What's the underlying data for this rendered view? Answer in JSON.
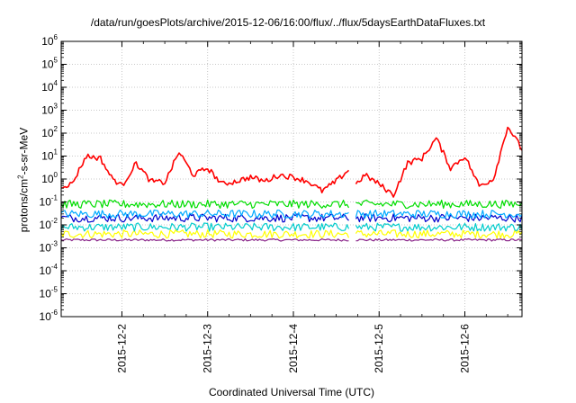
{
  "chart_data": {
    "type": "line",
    "title": "/data/run/goesPlots/archive/2015-12-06/16:00/flux/../flux/5daysEarthDataFluxes.txt",
    "xlabel": "Coordinated Universal Time (UTC)",
    "ylabel_parts": [
      "protons/cm",
      "2",
      "-s-sr-MeV"
    ],
    "y_scale": "log",
    "ylim": [
      1e-06,
      1000000.0
    ],
    "xlim": [
      "2015-12-01 07:00",
      "2015-12-06 16:00"
    ],
    "grid": true,
    "x_tick_labels": [
      "2015-12-2",
      "2015-12-3",
      "2015-12-4",
      "2015-12-5",
      "2015-12-6"
    ],
    "y_ticks": [
      {
        "base": "10",
        "exp": "-6"
      },
      {
        "base": "10",
        "exp": "-5"
      },
      {
        "base": "10",
        "exp": "-4"
      },
      {
        "base": "10",
        "exp": "-3"
      },
      {
        "base": "10",
        "exp": "-2"
      },
      {
        "base": "10",
        "exp": "-1"
      },
      {
        "base": "10",
        "exp": "0"
      },
      {
        "base": "10",
        "exp": "1"
      },
      {
        "base": "10",
        "exp": "2"
      },
      {
        "base": "10",
        "exp": "3"
      },
      {
        "base": "10",
        "exp": "4"
      },
      {
        "base": "10",
        "exp": "5"
      },
      {
        "base": "10",
        "exp": "6"
      }
    ],
    "data_gap": [
      "2015-12-04 16:00",
      "2015-12-04 17:00"
    ],
    "series": [
      {
        "color": "#ff0000",
        "x": [
          "2015-12-01 07:00",
          "2015-12-01 10:00",
          "2015-12-01 14:00",
          "2015-12-01 18:00",
          "2015-12-01 21:00",
          "2015-12-02 00:00",
          "2015-12-02 04:00",
          "2015-12-02 08:00",
          "2015-12-02 12:00",
          "2015-12-02 16:00",
          "2015-12-02 20:00",
          "2015-12-03 00:00",
          "2015-12-03 04:00",
          "2015-12-03 08:00",
          "2015-12-03 12:00",
          "2015-12-03 16:00",
          "2015-12-03 20:00",
          "2015-12-04 00:00",
          "2015-12-04 04:00",
          "2015-12-04 08:00",
          "2015-12-04 12:00",
          "2015-12-04 16:00",
          "2015-12-04 17:00",
          "2015-12-04 20:00",
          "2015-12-05 00:00",
          "2015-12-05 04:00",
          "2015-12-05 08:00",
          "2015-12-05 12:00",
          "2015-12-05 16:00",
          "2015-12-05 20:00",
          "2015-12-06 00:00",
          "2015-12-06 04:00",
          "2015-12-06 08:00",
          "2015-12-06 12:00",
          "2015-12-06 16:00"
        ],
        "y": [
          0.5,
          0.6,
          10,
          8,
          1.2,
          0.5,
          5,
          0.8,
          0.7,
          15,
          1.5,
          3,
          0.6,
          0.8,
          1.2,
          0.8,
          1.5,
          1.2,
          0.8,
          0.3,
          0.8,
          3,
          0.5,
          1.5,
          0.6,
          0.2,
          5,
          8,
          60,
          3,
          10,
          0.5,
          1,
          200,
          20
        ]
      },
      {
        "color": "#00dd00",
        "x": [
          "2015-12-01 07:00",
          "2015-12-06 16:00"
        ],
        "y": [
          0.08,
          0.08
        ]
      },
      {
        "color": "#00aaff",
        "x": [
          "2015-12-01 07:00",
          "2015-12-06 16:00"
        ],
        "y": [
          0.03,
          0.03
        ]
      },
      {
        "color": "#0000cc",
        "x": [
          "2015-12-01 07:00",
          "2015-12-06 16:00"
        ],
        "y": [
          0.02,
          0.02
        ]
      },
      {
        "color": "#00cccc",
        "x": [
          "2015-12-01 07:00",
          "2015-12-06 16:00"
        ],
        "y": [
          0.008,
          0.008
        ]
      },
      {
        "color": "#ffff00",
        "x": [
          "2015-12-01 07:00",
          "2015-12-06 16:00"
        ],
        "y": [
          0.004,
          0.004
        ]
      },
      {
        "color": "#882288",
        "x": [
          "2015-12-01 07:00",
          "2015-12-06 16:00"
        ],
        "y": [
          0.0022,
          0.0022
        ]
      }
    ]
  }
}
